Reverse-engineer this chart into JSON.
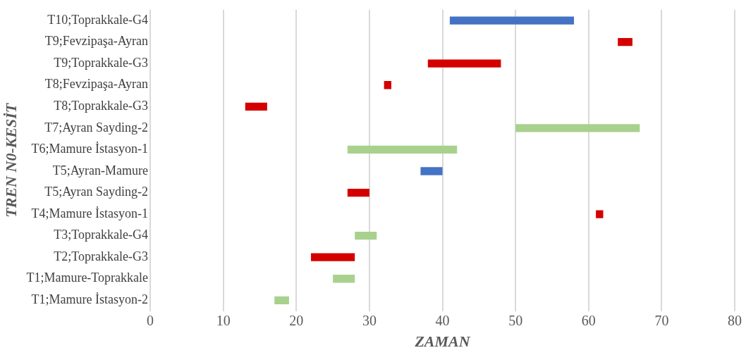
{
  "chart_data": {
    "type": "bar",
    "orientation": "horizontal",
    "xlabel": "ZAMAN",
    "ylabel": "TREN N0-KESİT",
    "categories": [
      "T10;Toprakkale-G4",
      "T9;Fevzipaşa-Ayran",
      "T9;Toprakkale-G3",
      "T8;Fevzipaşa-Ayran",
      "T8;Toprakkale-G3",
      "T7;Ayran Sayding-2",
      "T6;Mamure İstasyon-1",
      "T5;Ayran-Mamure",
      "T5;Ayran Sayding-2",
      "T4;Mamure İstasyon-1",
      "T3;Toprakkale-G4",
      "T2;Toprakkale-G3",
      "T1;Mamure-Toprakkale",
      "T1;Mamure İstasyon-2"
    ],
    "base": [
      41,
      64,
      38,
      32,
      13,
      50,
      27,
      37,
      27,
      61,
      28,
      22,
      25,
      17
    ],
    "values": [
      17,
      2,
      10,
      1,
      3,
      17,
      15,
      3,
      3,
      1,
      3,
      6,
      3,
      2
    ],
    "colors": [
      "#4472c4",
      "#d40000",
      "#d40000",
      "#d40000",
      "#d40000",
      "#a9d18e",
      "#a9d18e",
      "#4472c4",
      "#d40000",
      "#d40000",
      "#a9d18e",
      "#d40000",
      "#a9d18e",
      "#a9d18e"
    ],
    "xlim": [
      0,
      80
    ],
    "xticks": [
      0,
      10,
      20,
      30,
      40,
      50,
      60,
      70,
      80
    ],
    "grid": "x",
    "legend": false
  }
}
